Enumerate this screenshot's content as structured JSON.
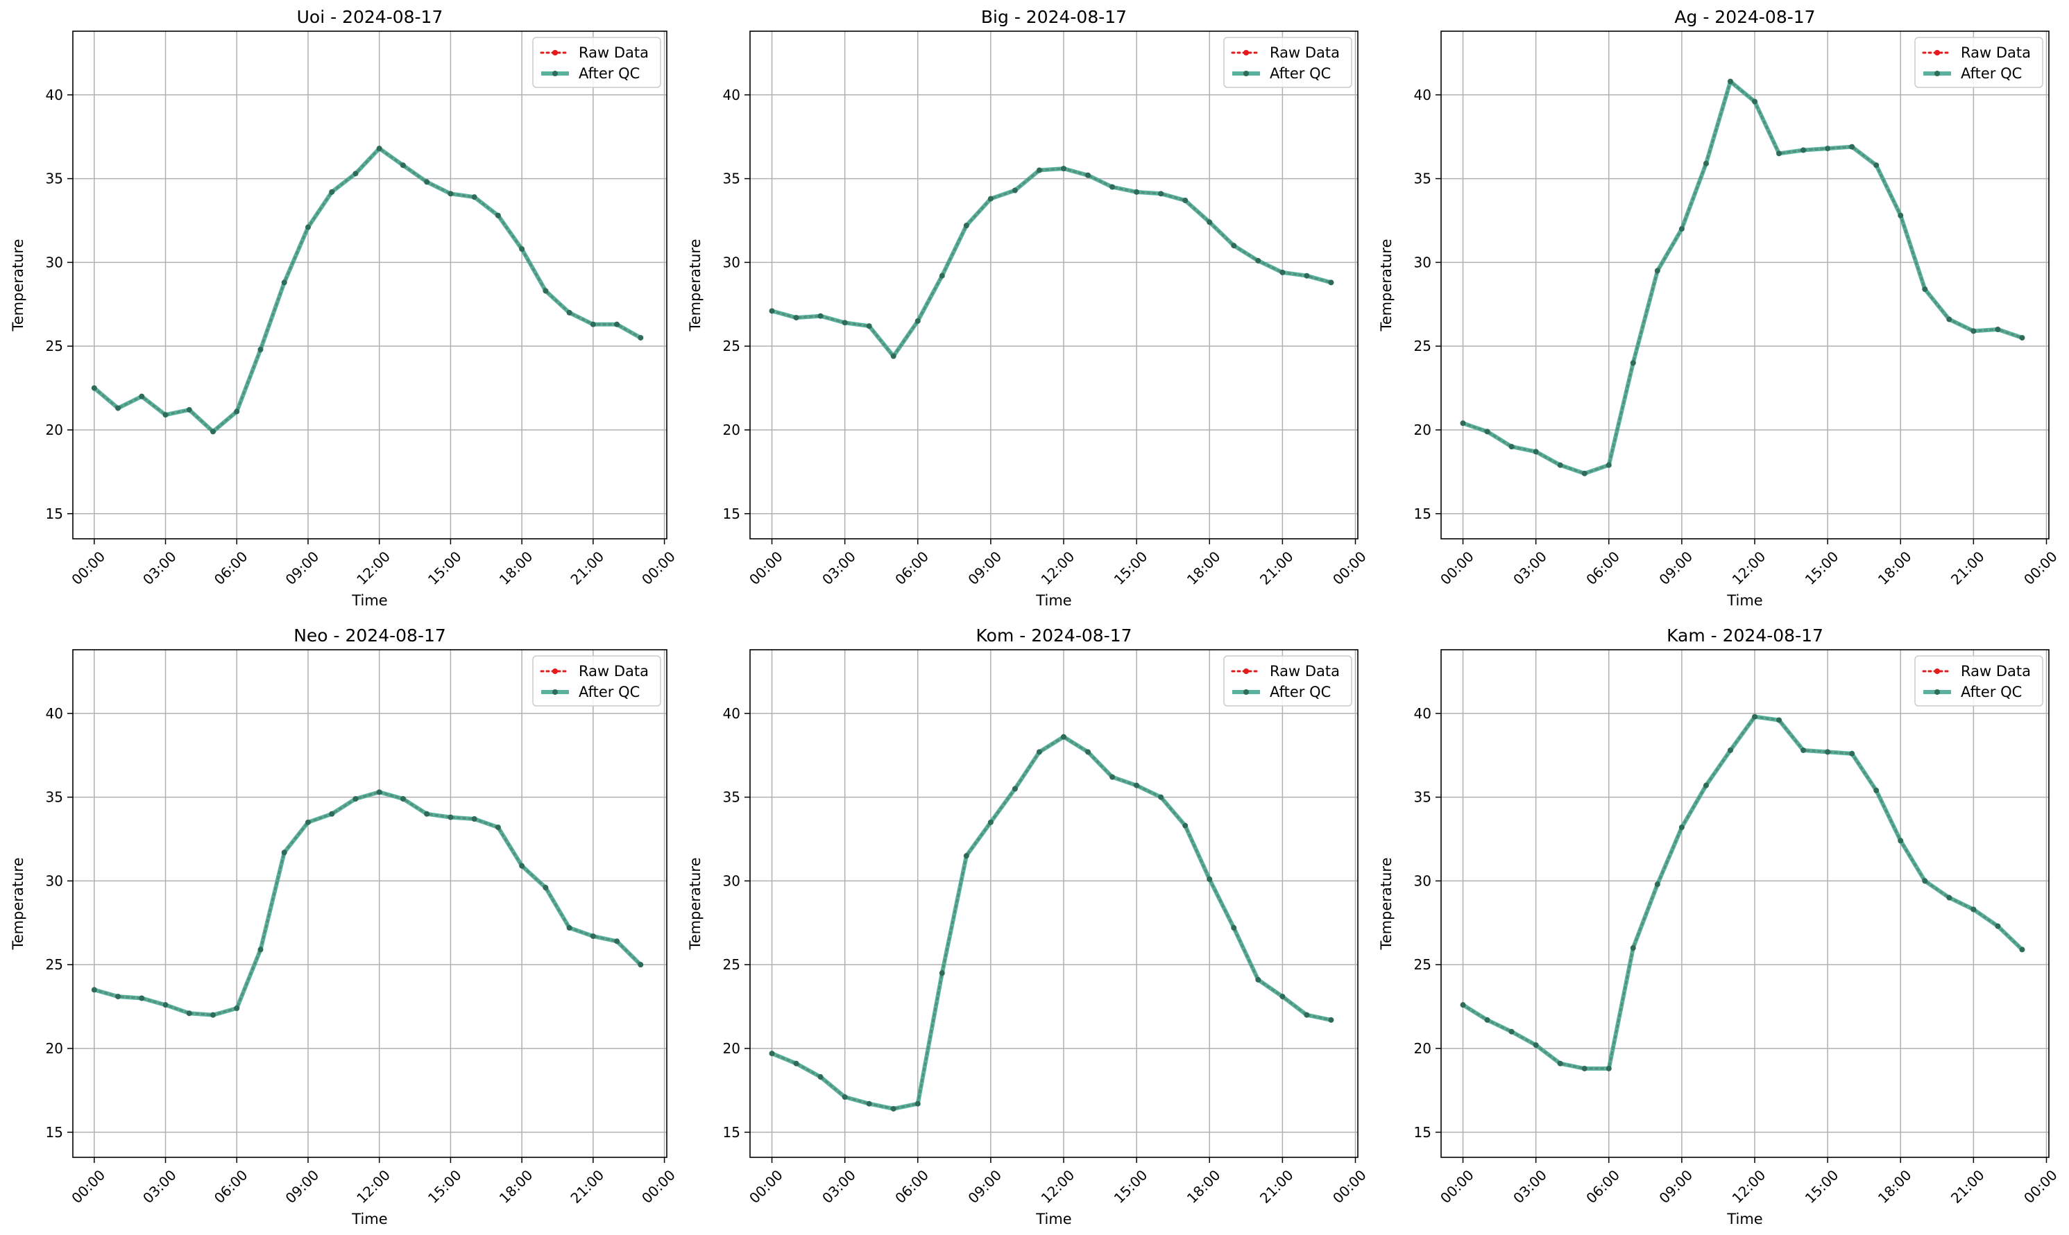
{
  "figure": {
    "background": "#ffffff"
  },
  "legend": {
    "raw_label": "Raw Data",
    "qc_label": "After QC",
    "placement": "upper-right"
  },
  "styles": {
    "raw_color": "#e41a1c",
    "qc_color": "#3ba58c",
    "qc_marker_color": "#2e6b58",
    "grid_color": "#b0b0b0"
  },
  "chart_data": [
    {
      "type": "line",
      "title": "Uoi - 2024-08-17",
      "xlabel": "Time",
      "ylabel": "Temperature",
      "ylim": [
        13.5,
        43.8
      ],
      "yticks": [
        15,
        20,
        25,
        30,
        35,
        40
      ],
      "xlim": [
        -0.9,
        24.1
      ],
      "xticks": [
        0,
        3,
        6,
        9,
        12,
        15,
        18,
        21,
        24
      ],
      "xticklabels": [
        "00:00",
        "03:00",
        "06:00",
        "09:00",
        "12:00",
        "15:00",
        "18:00",
        "21:00",
        "00:00"
      ],
      "grid": true,
      "x": [
        0,
        1,
        2,
        3,
        4,
        5,
        6,
        7,
        8,
        9,
        10,
        11,
        12,
        13,
        14,
        15,
        16,
        17,
        18,
        19,
        20,
        21,
        22,
        23
      ],
      "series": [
        {
          "name": "Raw Data",
          "values": [
            22.5,
            21.3,
            22.0,
            20.9,
            21.2,
            19.9,
            21.1,
            24.8,
            28.8,
            32.1,
            34.2,
            35.3,
            36.8,
            35.8,
            34.8,
            34.1,
            33.9,
            32.8,
            30.8,
            28.3,
            27.0,
            26.3,
            26.3,
            25.5
          ]
        },
        {
          "name": "After QC",
          "values": [
            22.5,
            21.3,
            22.0,
            20.9,
            21.2,
            19.9,
            21.1,
            24.8,
            28.8,
            32.1,
            34.2,
            35.3,
            36.8,
            35.8,
            34.8,
            34.1,
            33.9,
            32.8,
            30.8,
            28.3,
            27.0,
            26.3,
            26.3,
            25.5
          ]
        }
      ]
    },
    {
      "type": "line",
      "title": "Big - 2024-08-17",
      "xlabel": "Time",
      "ylabel": "Temperature",
      "ylim": [
        13.5,
        43.8
      ],
      "yticks": [
        15,
        20,
        25,
        30,
        35,
        40
      ],
      "xlim": [
        -0.9,
        24.1
      ],
      "xticks": [
        0,
        3,
        6,
        9,
        12,
        15,
        18,
        21,
        24
      ],
      "xticklabels": [
        "00:00",
        "03:00",
        "06:00",
        "09:00",
        "12:00",
        "15:00",
        "18:00",
        "21:00",
        "00:00"
      ],
      "grid": true,
      "x": [
        0,
        1,
        2,
        3,
        4,
        5,
        6,
        7,
        8,
        9,
        10,
        11,
        12,
        13,
        14,
        15,
        16,
        17,
        18,
        19,
        20,
        21,
        22,
        23
      ],
      "series": [
        {
          "name": "Raw Data",
          "values": [
            27.1,
            26.7,
            26.8,
            26.4,
            26.2,
            24.4,
            26.5,
            29.2,
            32.2,
            33.8,
            34.3,
            35.5,
            35.6,
            35.2,
            34.5,
            34.2,
            34.1,
            33.7,
            32.4,
            31.0,
            30.1,
            29.4,
            29.2,
            28.8
          ]
        },
        {
          "name": "After QC",
          "values": [
            27.1,
            26.7,
            26.8,
            26.4,
            26.2,
            24.4,
            26.5,
            29.2,
            32.2,
            33.8,
            34.3,
            35.5,
            35.6,
            35.2,
            34.5,
            34.2,
            34.1,
            33.7,
            32.4,
            31.0,
            30.1,
            29.4,
            29.2,
            28.8
          ]
        }
      ]
    },
    {
      "type": "line",
      "title": "Ag - 2024-08-17",
      "xlabel": "Time",
      "ylabel": "Temperature",
      "ylim": [
        13.5,
        43.8
      ],
      "yticks": [
        15,
        20,
        25,
        30,
        35,
        40
      ],
      "xlim": [
        -0.9,
        24.1
      ],
      "xticks": [
        0,
        3,
        6,
        9,
        12,
        15,
        18,
        21,
        24
      ],
      "xticklabels": [
        "00:00",
        "03:00",
        "06:00",
        "09:00",
        "12:00",
        "15:00",
        "18:00",
        "21:00",
        "00:00"
      ],
      "grid": true,
      "x": [
        0,
        1,
        2,
        3,
        4,
        5,
        6,
        7,
        8,
        9,
        10,
        11,
        12,
        13,
        14,
        15,
        16,
        17,
        18,
        19,
        20,
        21,
        22,
        23
      ],
      "series": [
        {
          "name": "Raw Data",
          "values": [
            20.4,
            19.9,
            19.0,
            18.7,
            17.9,
            17.4,
            17.9,
            24.0,
            29.5,
            32.0,
            35.9,
            40.8,
            39.6,
            36.5,
            36.7,
            36.8,
            36.9,
            35.8,
            32.8,
            28.4,
            26.6,
            25.9,
            26.0,
            25.5
          ]
        },
        {
          "name": "After QC",
          "values": [
            20.4,
            19.9,
            19.0,
            18.7,
            17.9,
            17.4,
            17.9,
            24.0,
            29.5,
            32.0,
            35.9,
            40.8,
            39.6,
            36.5,
            36.7,
            36.8,
            36.9,
            35.8,
            32.8,
            28.4,
            26.6,
            25.9,
            26.0,
            25.5
          ]
        }
      ]
    },
    {
      "type": "line",
      "title": "Neo - 2024-08-17",
      "xlabel": "Time",
      "ylabel": "Temperature",
      "ylim": [
        13.5,
        43.8
      ],
      "yticks": [
        15,
        20,
        25,
        30,
        35,
        40
      ],
      "xlim": [
        -0.9,
        24.1
      ],
      "xticks": [
        0,
        3,
        6,
        9,
        12,
        15,
        18,
        21,
        24
      ],
      "xticklabels": [
        "00:00",
        "03:00",
        "06:00",
        "09:00",
        "12:00",
        "15:00",
        "18:00",
        "21:00",
        "00:00"
      ],
      "grid": true,
      "x": [
        0,
        1,
        2,
        3,
        4,
        5,
        6,
        7,
        8,
        9,
        10,
        11,
        12,
        13,
        14,
        15,
        16,
        17,
        18,
        19,
        20,
        21,
        22,
        23
      ],
      "series": [
        {
          "name": "Raw Data",
          "values": [
            23.5,
            23.1,
            23.0,
            22.6,
            22.1,
            22.0,
            22.4,
            25.9,
            31.7,
            33.5,
            34.0,
            34.9,
            35.3,
            34.9,
            34.0,
            33.8,
            33.7,
            33.2,
            30.9,
            29.6,
            27.2,
            26.7,
            26.4,
            25.0
          ]
        },
        {
          "name": "After QC",
          "values": [
            23.5,
            23.1,
            23.0,
            22.6,
            22.1,
            22.0,
            22.4,
            25.9,
            31.7,
            33.5,
            34.0,
            34.9,
            35.3,
            34.9,
            34.0,
            33.8,
            33.7,
            33.2,
            30.9,
            29.6,
            27.2,
            26.7,
            26.4,
            25.0
          ]
        }
      ]
    },
    {
      "type": "line",
      "title": "Kom - 2024-08-17",
      "xlabel": "Time",
      "ylabel": "Temperature",
      "ylim": [
        13.5,
        43.8
      ],
      "yticks": [
        15,
        20,
        25,
        30,
        35,
        40
      ],
      "xlim": [
        -0.9,
        24.1
      ],
      "xticks": [
        0,
        3,
        6,
        9,
        12,
        15,
        18,
        21,
        24
      ],
      "xticklabels": [
        "00:00",
        "03:00",
        "06:00",
        "09:00",
        "12:00",
        "15:00",
        "18:00",
        "21:00",
        "00:00"
      ],
      "grid": true,
      "x": [
        0,
        1,
        2,
        3,
        4,
        5,
        6,
        7,
        8,
        9,
        10,
        11,
        12,
        13,
        14,
        15,
        16,
        17,
        18,
        19,
        20,
        21,
        22,
        23
      ],
      "series": [
        {
          "name": "Raw Data",
          "values": [
            19.7,
            19.1,
            18.3,
            17.1,
            16.7,
            16.4,
            16.7,
            24.5,
            31.5,
            33.5,
            35.5,
            37.7,
            38.6,
            37.7,
            36.2,
            35.7,
            35.0,
            33.3,
            30.1,
            27.2,
            24.1,
            23.1,
            22.0,
            21.7
          ]
        },
        {
          "name": "After QC",
          "values": [
            19.7,
            19.1,
            18.3,
            17.1,
            16.7,
            16.4,
            16.7,
            24.5,
            31.5,
            33.5,
            35.5,
            37.7,
            38.6,
            37.7,
            36.2,
            35.7,
            35.0,
            33.3,
            30.1,
            27.2,
            24.1,
            23.1,
            22.0,
            21.7
          ]
        }
      ]
    },
    {
      "type": "line",
      "title": "Kam - 2024-08-17",
      "xlabel": "Time",
      "ylabel": "Temperature",
      "ylim": [
        13.5,
        43.8
      ],
      "yticks": [
        15,
        20,
        25,
        30,
        35,
        40
      ],
      "xlim": [
        -0.9,
        24.1
      ],
      "xticks": [
        0,
        3,
        6,
        9,
        12,
        15,
        18,
        21,
        24
      ],
      "xticklabels": [
        "00:00",
        "03:00",
        "06:00",
        "09:00",
        "12:00",
        "15:00",
        "18:00",
        "21:00",
        "00:00"
      ],
      "grid": true,
      "x": [
        0,
        1,
        2,
        3,
        4,
        5,
        6,
        7,
        8,
        9,
        10,
        11,
        12,
        13,
        14,
        15,
        16,
        17,
        18,
        19,
        20,
        21,
        22,
        23
      ],
      "series": [
        {
          "name": "Raw Data",
          "values": [
            22.6,
            21.7,
            21.0,
            20.2,
            19.1,
            18.8,
            18.8,
            26.0,
            29.8,
            33.2,
            35.7,
            37.8,
            39.8,
            39.6,
            37.8,
            37.7,
            37.6,
            35.4,
            32.4,
            30.0,
            29.0,
            28.3,
            27.3,
            25.9
          ]
        },
        {
          "name": "After QC",
          "values": [
            22.6,
            21.7,
            21.0,
            20.2,
            19.1,
            18.8,
            18.8,
            26.0,
            29.8,
            33.2,
            35.7,
            37.8,
            39.8,
            39.6,
            37.8,
            37.7,
            37.6,
            35.4,
            32.4,
            30.0,
            29.0,
            28.3,
            27.3,
            25.9
          ]
        }
      ]
    }
  ]
}
